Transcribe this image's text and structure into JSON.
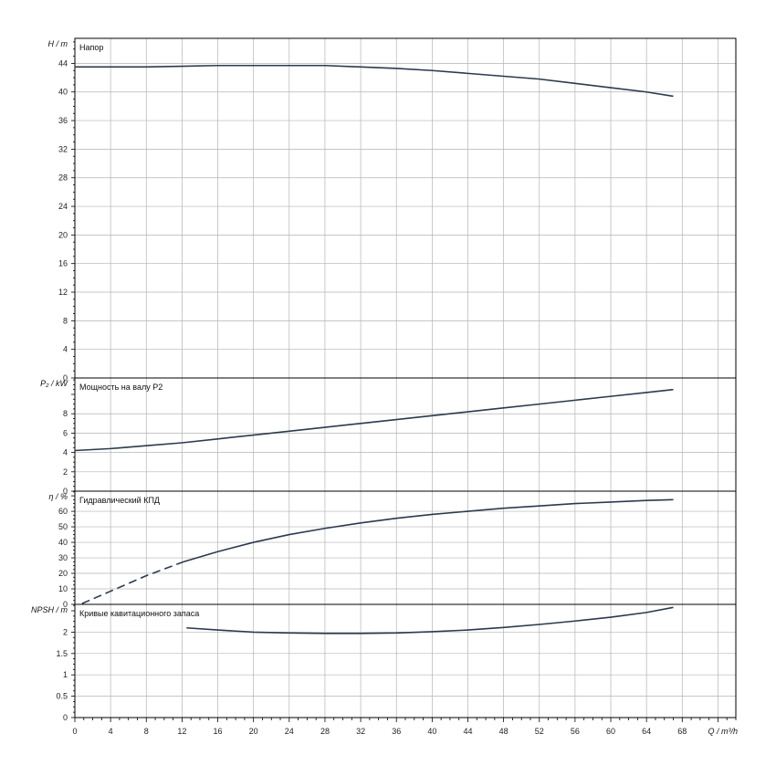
{
  "chart_data": {
    "type": "line",
    "x_axis": {
      "unit_label": "Q / m³/h",
      "range": [
        0,
        74
      ],
      "ticks": [
        0,
        4,
        8,
        12,
        16,
        20,
        24,
        28,
        32,
        36,
        40,
        44,
        48,
        52,
        56,
        60,
        64,
        68
      ]
    },
    "panels": [
      {
        "id": "head",
        "title": "Напор",
        "ylabel": "H / m",
        "ylim": [
          0,
          47.5
        ],
        "yticks": [
          0,
          4,
          8,
          12,
          16,
          20,
          24,
          28,
          32,
          36,
          40,
          44
        ],
        "series": [
          {
            "style": "solid",
            "x": [
              0,
              4,
              8,
              12,
              16,
              20,
              24,
              28,
              32,
              36,
              40,
              44,
              48,
              52,
              56,
              60,
              64,
              67
            ],
            "y": [
              43.5,
              43.5,
              43.5,
              43.6,
              43.7,
              43.7,
              43.7,
              43.7,
              43.5,
              43.3,
              43.0,
              42.6,
              42.2,
              41.8,
              41.2,
              40.6,
              40.0,
              39.4
            ]
          }
        ]
      },
      {
        "id": "power",
        "title": "Мощность на валу P2",
        "ylabel": "P₂ / kW",
        "ylim": [
          0,
          11.7
        ],
        "yticks": [
          0,
          2,
          4,
          6,
          8
        ],
        "series": [
          {
            "style": "solid",
            "x": [
              0,
              4,
              8,
              12,
              16,
              20,
              24,
              28,
              32,
              36,
              40,
              44,
              48,
              52,
              56,
              60,
              64,
              67
            ],
            "y": [
              4.2,
              4.4,
              4.7,
              5.0,
              5.4,
              5.8,
              6.2,
              6.6,
              7.0,
              7.4,
              7.8,
              8.2,
              8.6,
              9.0,
              9.4,
              9.8,
              10.2,
              10.5
            ]
          }
        ]
      },
      {
        "id": "efficiency",
        "title": "Гидравлический КПД",
        "ylabel": "η / %",
        "ylim": [
          0,
          73
        ],
        "yticks": [
          0,
          10,
          20,
          30,
          40,
          50,
          60
        ],
        "series": [
          {
            "style": "dashed",
            "x": [
              0.8,
              4,
              8,
              12.2
            ],
            "y": [
              0.5,
              8.5,
              18.5,
              27.5
            ]
          },
          {
            "style": "solid",
            "x": [
              12.2,
              16,
              20,
              24,
              28,
              32,
              36,
              40,
              44,
              48,
              52,
              56,
              60,
              64,
              67
            ],
            "y": [
              27.5,
              34,
              40,
              45,
              49,
              52.5,
              55.5,
              58,
              60,
              62,
              63.5,
              65,
              66,
              67,
              67.5
            ]
          }
        ]
      },
      {
        "id": "npsh",
        "title": "Кривые кавитационного запаса",
        "ylabel": "NPSH / m",
        "ylim": [
          0,
          2.65
        ],
        "yticks": [
          0,
          0.5,
          1,
          1.5,
          2
        ],
        "ytick_labels": [
          "0",
          "0.5",
          "1",
          "1.5",
          "2"
        ],
        "series": [
          {
            "style": "solid",
            "x": [
              12.5,
              16,
              20,
              24,
              28,
              32,
              36,
              40,
              44,
              48,
              52,
              56,
              60,
              64,
              67
            ],
            "y": [
              2.1,
              2.05,
              2.0,
              1.98,
              1.97,
              1.97,
              1.98,
              2.01,
              2.05,
              2.11,
              2.18,
              2.26,
              2.35,
              2.46,
              2.58
            ]
          }
        ]
      }
    ]
  },
  "colors": {
    "curve": "#2c3a4e",
    "grid": "#b4b4b4",
    "frame": "#000000",
    "text": "#111111"
  }
}
